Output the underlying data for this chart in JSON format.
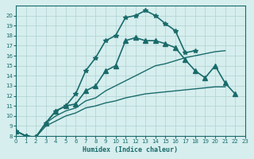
{
  "xlabel": "Humidex (Indice chaleur)",
  "ylabel": "",
  "bg_color": "#d6eeee",
  "line_color": "#1a6b6b",
  "grid_color": "#b0d0d0",
  "xlim": [
    0,
    23
  ],
  "ylim": [
    8,
    21
  ],
  "xticks": [
    0,
    1,
    2,
    3,
    4,
    5,
    6,
    7,
    8,
    9,
    10,
    11,
    12,
    13,
    14,
    15,
    16,
    17,
    18,
    19,
    20,
    21,
    22,
    23
  ],
  "yticks": [
    8,
    9,
    10,
    11,
    12,
    13,
    14,
    15,
    16,
    17,
    18,
    19,
    20
  ],
  "series": [
    {
      "x": [
        0,
        1,
        2,
        3,
        4,
        5,
        6,
        7,
        8,
        9,
        10,
        11,
        12,
        13,
        14,
        15,
        16,
        17,
        18
      ],
      "y": [
        8.5,
        8.0,
        7.9,
        9.3,
        10.5,
        11.0,
        12.2,
        14.5,
        15.8,
        17.5,
        18.0,
        19.8,
        20.0,
        20.5,
        20.0,
        19.2,
        18.5,
        16.3,
        16.5
      ],
      "marker": "*",
      "lw": 1.2
    },
    {
      "x": [
        0,
        1,
        2,
        3,
        4,
        5,
        6,
        7,
        8,
        9,
        10,
        11,
        12,
        13,
        14,
        15,
        16,
        17,
        18,
        19,
        20,
        21,
        22
      ],
      "y": [
        8.5,
        8.0,
        7.9,
        9.3,
        10.5,
        11.0,
        11.2,
        12.5,
        13.0,
        14.5,
        15.0,
        17.5,
        17.8,
        17.5,
        17.5,
        17.2,
        16.8,
        15.6,
        14.5,
        13.8,
        15.0,
        13.3,
        12.2
      ],
      "marker": "^",
      "lw": 1.2
    },
    {
      "x": [
        0,
        1,
        2,
        3,
        4,
        5,
        6,
        7,
        8,
        9,
        10,
        11,
        12,
        13,
        14,
        15,
        16,
        17,
        18,
        19,
        20,
        21
      ],
      "y": [
        8.5,
        8.0,
        7.9,
        9.3,
        10.0,
        10.5,
        10.8,
        11.5,
        11.8,
        12.5,
        13.0,
        13.5,
        14.0,
        14.5,
        15.0,
        15.2,
        15.5,
        15.8,
        16.0,
        16.2,
        16.4,
        16.5
      ],
      "marker": null,
      "lw": 1.0
    },
    {
      "x": [
        0,
        1,
        2,
        3,
        4,
        5,
        6,
        7,
        8,
        9,
        10,
        11,
        12,
        13,
        14,
        15,
        16,
        17,
        18,
        19,
        20,
        21
      ],
      "y": [
        8.5,
        8.0,
        7.9,
        9.0,
        9.5,
        10.0,
        10.3,
        10.8,
        11.0,
        11.3,
        11.5,
        11.8,
        12.0,
        12.2,
        12.3,
        12.4,
        12.5,
        12.6,
        12.7,
        12.8,
        12.9,
        12.9
      ],
      "marker": null,
      "lw": 1.0
    }
  ]
}
